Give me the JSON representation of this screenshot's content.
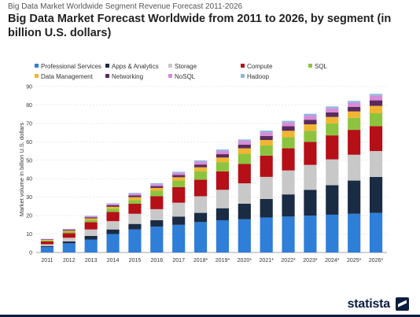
{
  "header": {
    "subtitle": "Big Data Market Worldwide Segment Revenue Forecast 2011-2026",
    "title": "Big Data Market Forecast Worldwide from 2011 to 2026, by segment (in billion U.S. dollars)"
  },
  "brand": {
    "name": "statista",
    "logo_icon": "statista-logo-icon"
  },
  "chart_data": {
    "type": "bar",
    "stacked": true,
    "title": "Big Data Market Forecast Worldwide from 2011 to 2026, by segment (in billion U.S. dollars)",
    "xlabel": "",
    "ylabel": "Market volume in billion U.S. dollars",
    "ylim": [
      0,
      90
    ],
    "yticks": [
      0,
      10,
      20,
      30,
      40,
      50,
      60,
      70,
      80,
      90
    ],
    "grid": true,
    "legend_position": "top",
    "categories": [
      "2011",
      "2012",
      "2013",
      "2014",
      "2015",
      "2016",
      "2017",
      "2018*",
      "2019*",
      "2020*",
      "2021*",
      "2022*",
      "2023*",
      "2024*",
      "2025*",
      "2026*"
    ],
    "series": [
      {
        "name": "Professional Services",
        "color": "#2f7ed8",
        "values": [
          3,
          5,
          7,
          10,
          12.5,
          14,
          15,
          16.5,
          17.5,
          18,
          19,
          19.5,
          20,
          20.5,
          21,
          21.5
        ]
      },
      {
        "name": "Apps & Analytics",
        "color": "#1a2b44",
        "values": [
          0.5,
          1,
          2,
          2.5,
          3,
          3.5,
          4.5,
          5,
          6.5,
          8.5,
          10,
          12,
          14,
          16,
          18,
          19.5
        ]
      },
      {
        "name": "Storage",
        "color": "#c8c8c8",
        "values": [
          1,
          2,
          3.5,
          4.5,
          5.5,
          6,
          7.5,
          9,
          10,
          11,
          12,
          13,
          13.5,
          14,
          14,
          14
        ]
      },
      {
        "name": "Compute",
        "color": "#b50f17",
        "values": [
          1.5,
          2.5,
          4,
          5,
          5.5,
          7,
          8.5,
          9,
          10,
          10.5,
          11.5,
          12,
          12.5,
          13,
          13.5,
          13.5
        ]
      },
      {
        "name": "SQL",
        "color": "#8cc43f",
        "values": [
          0.5,
          0.8,
          1.2,
          1.8,
          2,
          3,
          3.5,
          4.5,
          5,
          5.5,
          5.5,
          6,
          6,
          6.5,
          6.5,
          7
        ]
      },
      {
        "name": "Data Management",
        "color": "#f2b531",
        "values": [
          0.3,
          0.5,
          0.8,
          1,
          1.5,
          1.5,
          1.8,
          2.2,
          2.5,
          3,
          3,
          3.5,
          3.5,
          3.5,
          3.5,
          4
        ]
      },
      {
        "name": "Networking",
        "color": "#5b2a5e",
        "values": [
          0.3,
          0.5,
          0.6,
          0.8,
          1,
          1,
          1.2,
          1.5,
          1.8,
          2,
          2.2,
          2.5,
          2.5,
          2.5,
          2.5,
          3
        ]
      },
      {
        "name": "NoSQL",
        "color": "#d78bd8",
        "values": [
          0.2,
          0.3,
          0.5,
          0.7,
          0.8,
          1,
          1.2,
          1.5,
          1.8,
          2,
          2,
          2,
          2.2,
          2.2,
          2.2,
          2.5
        ]
      },
      {
        "name": "Hadoop",
        "color": "#8fb6dc",
        "values": [
          0.1,
          0.2,
          0.3,
          0.4,
          0.5,
          0.6,
          0.6,
          0.7,
          0.8,
          0.8,
          0.9,
          0.9,
          1,
          1,
          1,
          1
        ]
      }
    ]
  }
}
